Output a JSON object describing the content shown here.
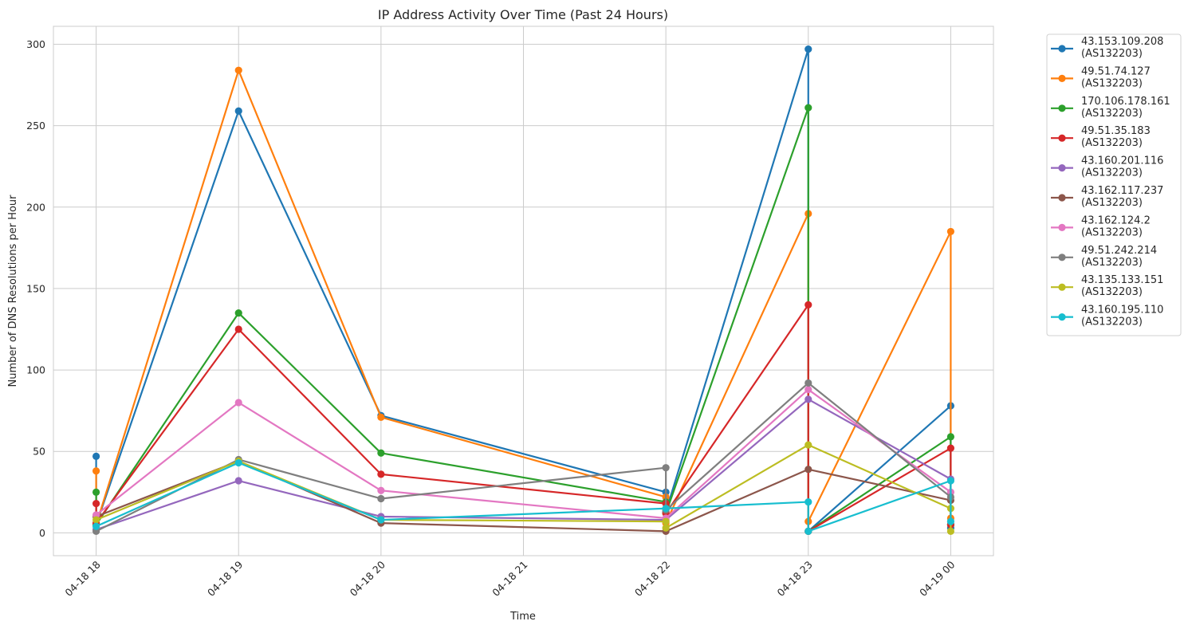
{
  "chart_data": {
    "type": "line",
    "title": "IP Address Activity Over Time (Past 24 Hours)",
    "xlabel": "Time",
    "ylabel": "Number of DNS Resolutions per Hour",
    "x_ticks": [
      "04-18 18",
      "04-18 19",
      "04-18 20",
      "04-18 21",
      "04-18 22",
      "04-18 23",
      "04-19 00"
    ],
    "x_range": [
      "04-18 17:42",
      "04-19 00:18"
    ],
    "y_ticks": [
      0,
      50,
      100,
      150,
      200,
      250,
      300
    ],
    "ylim": [
      -14,
      311
    ],
    "grid": true,
    "legend_position": "outside-right",
    "series": [
      {
        "name": "43.153.109.208\n(AS132203)",
        "color": "#1f77b4",
        "points": [
          [
            "04-18 18",
            47
          ],
          [
            "04-18 18",
            5
          ],
          [
            "04-18 19",
            259
          ],
          [
            "04-18 20",
            72
          ],
          [
            "04-18 22",
            25
          ],
          [
            "04-18 22",
            13
          ],
          [
            "04-18 23",
            297
          ],
          [
            "04-18 23",
            1
          ],
          [
            "04-19 00",
            78
          ],
          [
            "04-19 00",
            3
          ]
        ]
      },
      {
        "name": "49.51.74.127\n(AS132203)",
        "color": "#ff7f0e",
        "points": [
          [
            "04-18 18",
            38
          ],
          [
            "04-18 18",
            5
          ],
          [
            "04-18 19",
            284
          ],
          [
            "04-18 20",
            71
          ],
          [
            "04-18 22",
            22
          ],
          [
            "04-18 22",
            6
          ],
          [
            "04-18 23",
            196
          ],
          [
            "04-18 23",
            7
          ],
          [
            "04-19 00",
            185
          ],
          [
            "04-19 00",
            9
          ]
        ]
      },
      {
        "name": "170.106.178.161\n(AS132203)",
        "color": "#2ca02c",
        "points": [
          [
            "04-18 18",
            25
          ],
          [
            "04-18 18",
            5
          ],
          [
            "04-18 19",
            135
          ],
          [
            "04-18 20",
            49
          ],
          [
            "04-18 22",
            19
          ],
          [
            "04-18 22",
            12
          ],
          [
            "04-18 23",
            261
          ],
          [
            "04-18 23",
            1
          ],
          [
            "04-19 00",
            59
          ],
          [
            "04-19 00",
            5
          ]
        ]
      },
      {
        "name": "49.51.35.183\n(AS132203)",
        "color": "#d62728",
        "points": [
          [
            "04-18 18",
            18
          ],
          [
            "04-18 18",
            6
          ],
          [
            "04-18 19",
            125
          ],
          [
            "04-18 20",
            36
          ],
          [
            "04-18 22",
            18
          ],
          [
            "04-18 22",
            12
          ],
          [
            "04-18 23",
            140
          ],
          [
            "04-18 23",
            1
          ],
          [
            "04-19 00",
            52
          ],
          [
            "04-19 00",
            5
          ]
        ]
      },
      {
        "name": "43.160.201.116\n(AS132203)",
        "color": "#9467bd",
        "points": [
          [
            "04-18 18",
            2
          ],
          [
            "04-18 19",
            32
          ],
          [
            "04-18 20",
            10
          ],
          [
            "04-18 22",
            8
          ],
          [
            "04-18 23",
            82
          ],
          [
            "04-19 00",
            33
          ]
        ]
      },
      {
        "name": "43.162.117.237\n(AS132203)",
        "color": "#8c564b",
        "points": [
          [
            "04-18 18",
            10
          ],
          [
            "04-18 19",
            44
          ],
          [
            "04-18 20",
            6
          ],
          [
            "04-18 22",
            1
          ],
          [
            "04-18 23",
            39
          ],
          [
            "04-19 00",
            20
          ]
        ]
      },
      {
        "name": "43.162.124.2\n(AS132203)",
        "color": "#e377c2",
        "points": [
          [
            "04-18 18",
            11
          ],
          [
            "04-18 19",
            80
          ],
          [
            "04-18 20",
            26
          ],
          [
            "04-18 22",
            9
          ],
          [
            "04-18 23",
            88
          ],
          [
            "04-19 00",
            25
          ]
        ]
      },
      {
        "name": "49.51.242.214\n(AS132203)",
        "color": "#7f7f7f",
        "points": [
          [
            "04-18 18",
            1
          ],
          [
            "04-18 19",
            45
          ],
          [
            "04-18 20",
            21
          ],
          [
            "04-18 22",
            40
          ],
          [
            "04-18 22",
            14
          ],
          [
            "04-18 23",
            92
          ],
          [
            "04-19 00",
            22
          ]
        ]
      },
      {
        "name": "43.135.133.151\n(AS132203)",
        "color": "#bcbd22",
        "points": [
          [
            "04-18 18",
            8
          ],
          [
            "04-18 19",
            44
          ],
          [
            "04-18 20",
            8
          ],
          [
            "04-18 22",
            7
          ],
          [
            "04-18 22",
            3
          ],
          [
            "04-18 23",
            54
          ],
          [
            "04-19 00",
            15
          ],
          [
            "04-19 00",
            1
          ]
        ]
      },
      {
        "name": "43.160.195.110\n(AS132203)",
        "color": "#17becf",
        "points": [
          [
            "04-18 18",
            4
          ],
          [
            "04-18 19",
            43
          ],
          [
            "04-18 20",
            8
          ],
          [
            "04-18 22",
            15
          ],
          [
            "04-18 23",
            19
          ],
          [
            "04-18 23",
            1
          ],
          [
            "04-19 00",
            32
          ],
          [
            "04-19 00",
            7
          ]
        ]
      }
    ]
  }
}
